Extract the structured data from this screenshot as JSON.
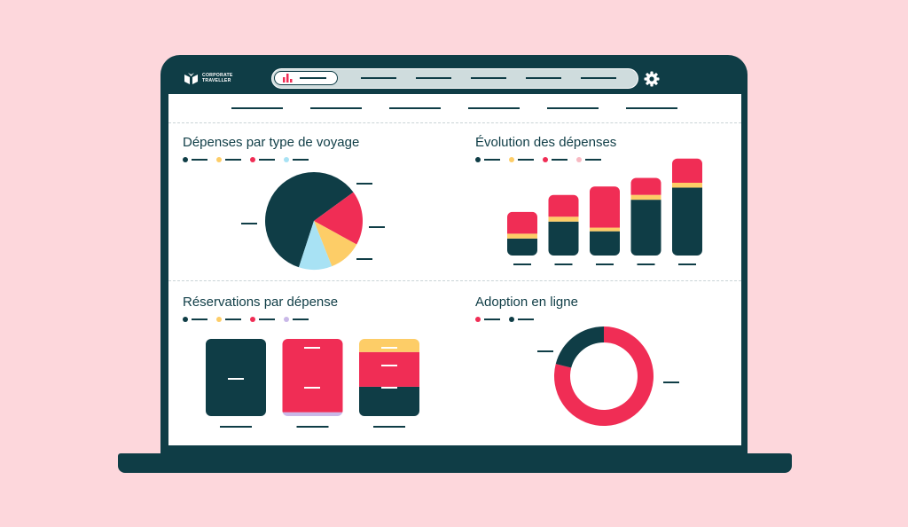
{
  "app": {
    "logo_line1": "CORPORATE",
    "logo_line2": "TRAVELLER"
  },
  "colors": {
    "background": "#fdd7dc",
    "navy": "#0f3d46",
    "red": "#f02d55",
    "yellow": "#fdcd67",
    "lightblue": "#a8e2f4",
    "lilac": "#c9b8e8",
    "pink": "#f7b9c2"
  },
  "panels": {
    "spend_by_type": {
      "title": "Dépenses par type de voyage",
      "legend_colors": [
        "#0f3d46",
        "#fdcd67",
        "#f02d55",
        "#a8e2f4"
      ]
    },
    "spend_evolution": {
      "title": "Évolution des dépenses",
      "legend_colors": [
        "#0f3d46",
        "#fdcd67",
        "#f02d55",
        "#f7b9c2"
      ]
    },
    "bookings_by_spend": {
      "title": "Réservations par dépense",
      "legend_colors": [
        "#0f3d46",
        "#fdcd67",
        "#f02d55",
        "#c9b8e8"
      ]
    },
    "online_adoption": {
      "title": "Adoption en ligne",
      "legend_colors": [
        "#f02d55",
        "#0f3d46"
      ]
    }
  },
  "chart_data": [
    {
      "type": "pie",
      "panel": "spend_by_type",
      "slices": [
        {
          "color": "#0f3d46",
          "value": 60
        },
        {
          "color": "#f02d55",
          "value": 18
        },
        {
          "color": "#fdcd67",
          "value": 11
        },
        {
          "color": "#a8e2f4",
          "value": 11
        }
      ]
    },
    {
      "type": "bar",
      "panel": "spend_evolution",
      "stacked": true,
      "series": [
        {
          "color": "#0f3d46",
          "values": [
            14,
            28,
            20,
            46,
            56
          ]
        },
        {
          "color": "#fdcd67",
          "values": [
            4,
            4,
            3,
            4,
            4
          ]
        },
        {
          "color": "#f02d55",
          "values": [
            18,
            18,
            34,
            14,
            20
          ]
        }
      ],
      "ylim": [
        0,
        90
      ]
    },
    {
      "type": "bar",
      "panel": "bookings_by_spend",
      "stacked": true,
      "series": [
        {
          "color": "#0f3d46",
          "values": [
            100,
            0,
            38
          ]
        },
        {
          "color": "#c9b8e8",
          "values": [
            0,
            5,
            0
          ]
        },
        {
          "color": "#f02d55",
          "values": [
            0,
            95,
            45
          ]
        },
        {
          "color": "#fdcd67",
          "values": [
            0,
            0,
            17
          ]
        }
      ],
      "ylim": [
        0,
        100
      ]
    },
    {
      "type": "pie",
      "panel": "online_adoption",
      "donut": true,
      "slices": [
        {
          "color": "#f02d55",
          "value": 79
        },
        {
          "color": "#0f3d46",
          "value": 21
        }
      ]
    }
  ]
}
